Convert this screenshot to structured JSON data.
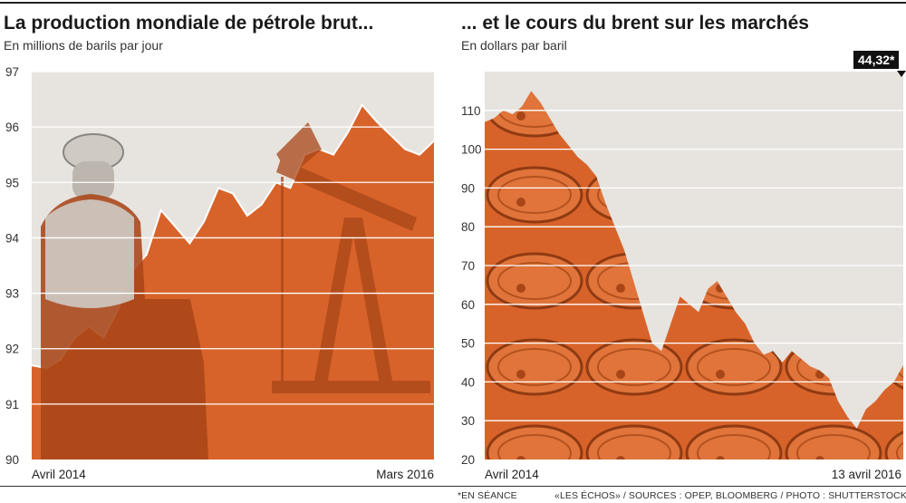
{
  "header": {
    "left_title": "La production mondiale de pétrole brut...",
    "left_subtitle": "En millions de barils par jour",
    "right_title": "... et le cours du brent sur les marchés",
    "right_subtitle": "En dollars par baril"
  },
  "footer": {
    "note": "*EN SÉANCE",
    "sources": "«LES ÉCHOS» / SOURCES : OPEP, BLOOMBERG / PHOTO : SHUTTERSTOCK"
  },
  "colors": {
    "orange": "#d8632a",
    "orange_dark": "#a94618",
    "sky": "#e7e4df",
    "grid": "#ffffff",
    "badge": "#111111"
  },
  "chart_data": [
    {
      "type": "area",
      "title": "La production mondiale de pétrole brut...",
      "subtitle": "En millions de barils par jour",
      "ylim": [
        90,
        97
      ],
      "yticks": [
        90,
        91,
        92,
        93,
        94,
        95,
        96,
        97
      ],
      "x_labels": [
        "Avril 2014",
        "Mars 2016"
      ],
      "grid": true,
      "values": [
        91.7,
        91.65,
        91.8,
        92.2,
        92.4,
        92.2,
        92.7,
        93.4,
        93.7,
        94.5,
        94.2,
        93.9,
        94.3,
        94.9,
        94.8,
        94.4,
        94.6,
        95.0,
        94.9,
        95.5,
        95.6,
        95.5,
        95.9,
        96.4,
        96.1,
        95.85,
        95.6,
        95.5,
        95.75
      ]
    },
    {
      "type": "area",
      "title": "... et le cours du brent sur les marchés",
      "subtitle": "En dollars par baril",
      "ylim": [
        20,
        120
      ],
      "yticks": [
        20,
        30,
        40,
        50,
        60,
        70,
        80,
        90,
        100,
        110
      ],
      "x_labels": [
        "Avril 2014",
        "13 avril 2016"
      ],
      "grid": true,
      "last_value_label": "44,32*",
      "values": [
        107,
        108,
        110,
        109,
        111,
        115,
        112,
        108,
        104,
        101,
        98,
        96,
        93,
        86,
        80,
        74,
        66,
        58,
        50,
        48,
        55,
        62,
        60,
        58,
        64,
        66,
        62,
        58,
        55,
        50,
        47,
        48,
        45,
        48,
        46,
        44,
        43,
        41,
        35,
        31,
        28,
        33,
        35,
        38,
        40,
        44.32
      ]
    }
  ]
}
